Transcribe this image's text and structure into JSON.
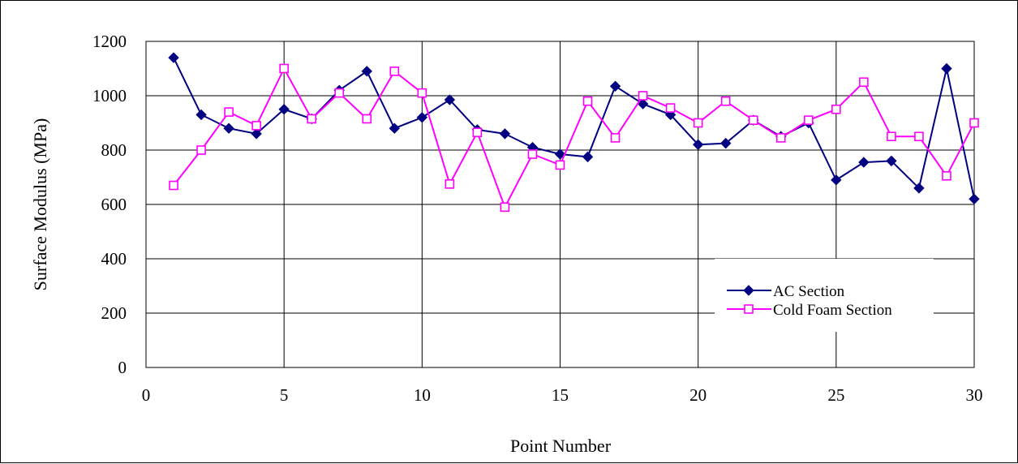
{
  "chart_data": {
    "type": "line",
    "title": "",
    "xlabel": "Point Number",
    "ylabel": "Surface Modulus (MPa)",
    "xlim": [
      0,
      30
    ],
    "ylim": [
      0,
      1200
    ],
    "x_ticks": [
      0,
      5,
      10,
      15,
      20,
      25,
      30
    ],
    "y_ticks": [
      0,
      200,
      400,
      600,
      800,
      1000,
      1200
    ],
    "grid": true,
    "legend_position": "bottom-right, inside plot",
    "x": [
      1,
      2,
      3,
      4,
      5,
      6,
      7,
      8,
      9,
      10,
      11,
      12,
      13,
      14,
      15,
      16,
      17,
      18,
      19,
      20,
      21,
      22,
      23,
      24,
      25,
      26,
      27,
      28,
      29,
      30
    ],
    "series": [
      {
        "name": "AC Section",
        "color": "#000080",
        "marker": "filled-diamond",
        "values": [
          1140,
          930,
          880,
          860,
          950,
          915,
          1020,
          1090,
          880,
          920,
          985,
          875,
          860,
          810,
          785,
          775,
          1035,
          970,
          930,
          820,
          825,
          910,
          850,
          900,
          690,
          755,
          760,
          660,
          1100,
          620
        ]
      },
      {
        "name": "Cold Foam Section",
        "color": "#ff00ff",
        "marker": "open-square",
        "values": [
          670,
          800,
          940,
          890,
          1100,
          915,
          1010,
          915,
          1090,
          1010,
          675,
          865,
          590,
          785,
          745,
          980,
          845,
          1000,
          955,
          900,
          980,
          910,
          845,
          910,
          950,
          1050,
          850,
          850,
          705,
          900
        ]
      }
    ]
  }
}
